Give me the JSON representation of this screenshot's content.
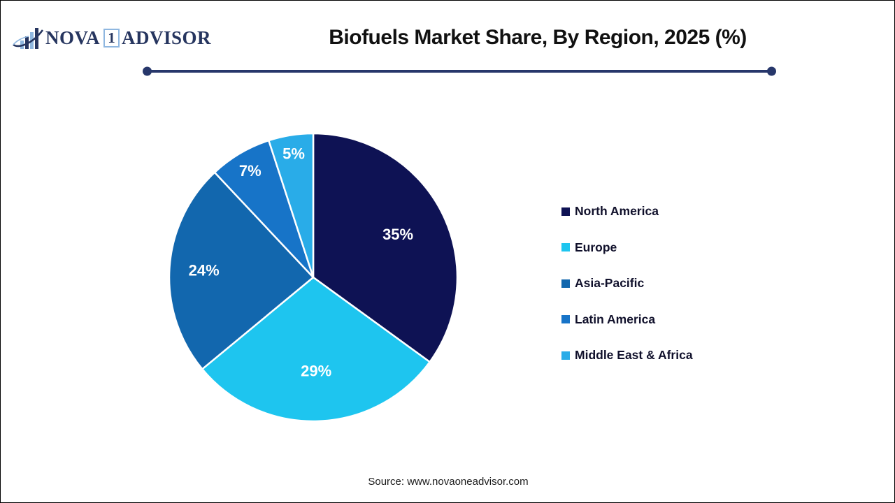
{
  "brand": {
    "name_part1": "NOVA",
    "badge": "1",
    "name_part2": "ADVISOR",
    "navy": "#26355F",
    "light_blue": "#8FB7E0"
  },
  "header": {
    "title": "Biofuels Market Share, By Region, 2025 (%)"
  },
  "chart_data": {
    "type": "pie",
    "title": "Biofuels Market Share, By Region, 2025 (%)",
    "unit": "%",
    "start_angle_deg": 0,
    "direction": "clockwise",
    "legend_position": "right",
    "slice_border_color": "#ffffff",
    "slices": [
      {
        "label": "North America",
        "value": 35,
        "color": "#0E1254",
        "label_r": 0.66
      },
      {
        "label": "Europe",
        "value": 29,
        "color": "#1EC5EF",
        "label_r": 0.65
      },
      {
        "label": "Asia-Pacific",
        "value": 24,
        "color": "#1267AE",
        "label_r": 0.76
      },
      {
        "label": "Latin America",
        "value": 7,
        "color": "#1774C8",
        "label_r": 0.86
      },
      {
        "label": "Middle East & Africa",
        "value": 5,
        "color": "#29ACE8",
        "label_r": 0.87
      }
    ]
  },
  "footer": {
    "source": "Source: www.novaoneadvisor.com"
  }
}
